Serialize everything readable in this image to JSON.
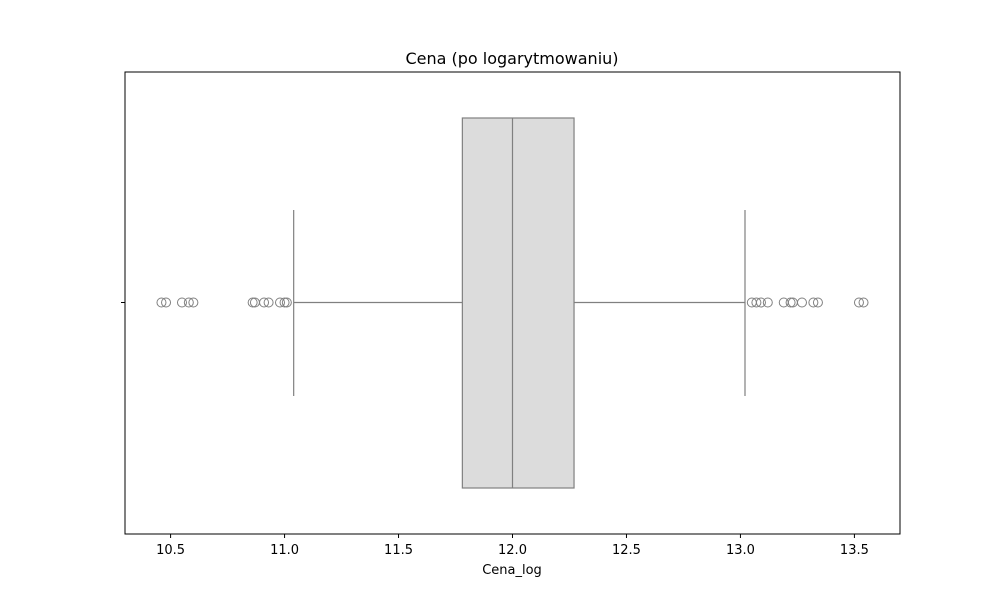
{
  "chart_data": {
    "type": "boxplot",
    "orientation": "horizontal",
    "title": "Cena (po logarytmowaniu)",
    "xlabel": "Cena_log",
    "ylabel": "",
    "xlim": [
      10.3,
      13.7
    ],
    "xticks": [
      10.5,
      11.0,
      11.5,
      12.0,
      12.5,
      13.0,
      13.5
    ],
    "xtick_labels": [
      "10.5",
      "11.0",
      "11.5",
      "12.0",
      "12.5",
      "13.0",
      "13.5"
    ],
    "grid": false,
    "box": {
      "q1": 11.78,
      "median": 12.0,
      "q3": 12.27,
      "whisker_low": 11.04,
      "whisker_high": 13.02
    },
    "outliers": [
      10.46,
      10.48,
      10.55,
      10.58,
      10.6,
      10.86,
      10.87,
      10.91,
      10.93,
      10.98,
      11.0,
      11.01,
      13.05,
      13.07,
      13.09,
      13.12,
      13.19,
      13.22,
      13.23,
      13.27,
      13.32,
      13.34,
      13.52,
      13.54
    ],
    "colors": {
      "box_fill": "#dcdcdc",
      "line": "#808080",
      "axis": "#000000"
    }
  }
}
